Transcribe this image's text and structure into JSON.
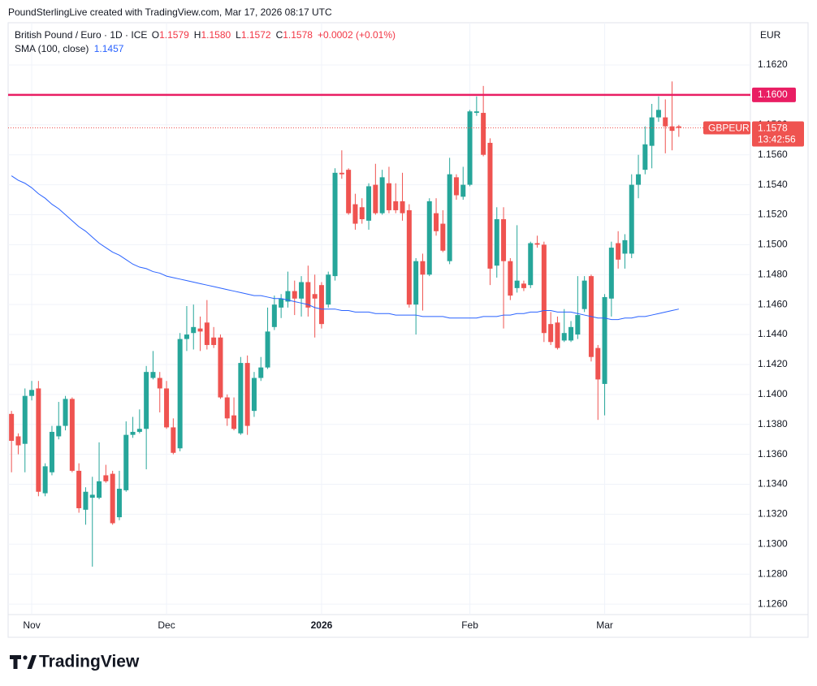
{
  "header": {
    "credit": "PoundSterlingLive created with TradingView.com, Mar 17, 2026 08:17 UTC",
    "brand": "TradingView"
  },
  "legend": {
    "symbol": "British Pound / Euro · 1D · ICE",
    "ohlc": [
      {
        "key": "O",
        "value": "1.1579"
      },
      {
        "key": "H",
        "value": "1.1580"
      },
      {
        "key": "L",
        "value": "1.1572"
      },
      {
        "key": "C",
        "value": "1.1578"
      }
    ],
    "change": "+0.0002 (+0.01%)"
  },
  "chart_data": {
    "type": "candlestick",
    "currency": "EUR",
    "categories": [
      null,
      null,
      null,
      "Nov",
      null,
      null,
      null,
      null,
      null,
      null,
      null,
      null,
      null,
      null,
      null,
      null,
      null,
      null,
      null,
      null,
      null,
      null,
      null,
      "Dec",
      null,
      null,
      null,
      null,
      null,
      null,
      null,
      null,
      null,
      null,
      null,
      null,
      null,
      null,
      null,
      null,
      null,
      null,
      null,
      null,
      null,
      null,
      "2026",
      null,
      null,
      null,
      null,
      null,
      null,
      null,
      null,
      null,
      null,
      null,
      null,
      null,
      null,
      null,
      null,
      null,
      null,
      null,
      null,
      null,
      "Feb",
      null,
      null,
      null,
      null,
      null,
      null,
      null,
      null,
      null,
      null,
      null,
      null,
      null,
      null,
      null,
      null,
      null,
      null,
      null,
      "Mar",
      null,
      null,
      null,
      null,
      null,
      null,
      null,
      null,
      null,
      null,
      null
    ],
    "open": [
      1.1387,
      1.1372,
      1.1367,
      1.1399,
      1.1404,
      1.1334,
      1.1348,
      1.1372,
      1.1379,
      1.1397,
      1.1349,
      1.1323,
      1.1331,
      1.1331,
      1.1346,
      1.1347,
      1.1318,
      1.1336,
      1.1373,
      1.1375,
      1.1377,
      1.1411,
      1.1411,
      1.1404,
      1.1378,
      1.1364,
      1.1437,
      1.1441,
      1.1444,
      1.1448,
      1.1438,
      1.1438,
      1.1398,
      1.1386,
      1.1374,
      1.1421,
      1.1389,
      1.1411,
      1.1418,
      1.1445,
      1.1458,
      1.1462,
      1.1469,
      1.1464,
      1.1475,
      1.1467,
      1.1473,
      1.146,
      1.1479,
      1.1548,
      1.155,
      1.1527,
      1.1525,
      1.1516,
      1.154,
      1.1521,
      1.1541,
      1.1529,
      1.1529,
      1.1523,
      1.146,
      1.1489,
      1.148,
      1.1521,
      1.1514,
      1.1489,
      1.1545,
      1.1532,
      1.154,
      1.1588,
      1.1588,
      1.1568,
      1.1486,
      1.1517,
      1.1489,
      1.1471,
      1.1474,
      1.1473,
      1.1501,
      1.15,
      1.1447,
      1.1448,
      1.1436,
      1.1436,
      1.144,
      1.1457,
      1.1479,
      1.1431,
      1.1407,
      1.1464,
      1.1501,
      1.1494,
      1.1494,
      1.154,
      1.155,
      1.1566,
      1.1585,
      1.1585,
      1.1579,
      1.1579
    ],
    "high": [
      1.1389,
      1.1374,
      1.1404,
      1.1409,
      1.1409,
      1.1354,
      1.1379,
      1.1395,
      1.1399,
      1.1398,
      1.1354,
      1.1338,
      1.1345,
      1.1368,
      1.1353,
      1.1349,
      1.1349,
      1.1382,
      1.1385,
      1.139,
      1.1419,
      1.1429,
      1.1415,
      1.1409,
      1.1384,
      1.1441,
      1.1459,
      1.146,
      1.1452,
      1.1463,
      1.1445,
      1.144,
      1.14,
      1.1398,
      1.1425,
      1.1426,
      1.1415,
      1.1425,
      1.1458,
      1.1466,
      1.1467,
      1.1482,
      1.1476,
      1.1479,
      1.1486,
      1.148,
      1.1475,
      1.1482,
      1.1551,
      1.1563,
      1.1551,
      1.1534,
      1.1531,
      1.1541,
      1.1554,
      1.155,
      1.1552,
      1.1541,
      1.1548,
      1.1527,
      1.1491,
      1.1494,
      1.1531,
      1.1531,
      1.1523,
      1.1558,
      1.1547,
      1.1552,
      1.159,
      1.1599,
      1.1606,
      1.1571,
      1.1525,
      1.1525,
      1.1491,
      1.1513,
      1.1476,
      1.1502,
      1.1506,
      1.1502,
      1.1455,
      1.1452,
      1.1457,
      1.1449,
      1.1479,
      1.1479,
      1.148,
      1.1433,
      1.1467,
      1.1502,
      1.1509,
      1.1507,
      1.1547,
      1.156,
      1.1579,
      1.1594,
      1.1599,
      1.1597,
      1.1609,
      1.158
    ],
    "low": [
      1.1348,
      1.136,
      1.1348,
      1.1396,
      1.1332,
      1.1332,
      1.1346,
      1.137,
      1.1376,
      1.1348,
      1.1321,
      1.1313,
      1.1285,
      1.133,
      1.1341,
      1.1313,
      1.1316,
      1.1335,
      1.1371,
      1.1374,
      1.135,
      1.141,
      1.1388,
      1.1377,
      1.136,
      1.1362,
      1.1429,
      1.143,
      1.1429,
      1.143,
      1.1431,
      1.1397,
      1.1379,
      1.1376,
      1.1373,
      1.1373,
      1.1385,
      1.1409,
      1.1417,
      1.1443,
      1.1451,
      1.1458,
      1.1453,
      1.1452,
      1.1452,
      1.1438,
      1.1444,
      1.1458,
      1.1476,
      1.1544,
      1.152,
      1.151,
      1.1514,
      1.151,
      1.152,
      1.152,
      1.1521,
      1.1521,
      1.1516,
      1.1458,
      1.144,
      1.1456,
      1.1479,
      1.1506,
      1.1495,
      1.1487,
      1.153,
      1.153,
      1.1539,
      1.1586,
      1.1559,
      1.1473,
      1.1478,
      1.1444,
      1.1463,
      1.1468,
      1.1469,
      1.1471,
      1.1498,
      1.1435,
      1.1433,
      1.143,
      1.1435,
      1.1435,
      1.1437,
      1.1455,
      1.1422,
      1.1383,
      1.1386,
      1.1452,
      1.1484,
      1.1484,
      1.1491,
      1.1531,
      1.1547,
      1.1551,
      1.1582,
      1.1561,
      1.1563,
      1.1572
    ],
    "close": [
      1.1369,
      1.1366,
      1.1399,
      1.1403,
      1.1335,
      1.1352,
      1.1375,
      1.1379,
      1.1397,
      1.1349,
      1.1324,
      1.1335,
      1.1333,
      1.1342,
      1.1342,
      1.1314,
      1.1337,
      1.1373,
      1.1375,
      1.1377,
      1.1415,
      1.1415,
      1.1404,
      1.1378,
      1.1361,
      1.1437,
      1.144,
      1.1445,
      1.1442,
      1.1433,
      1.1433,
      1.1398,
      1.1384,
      1.1377,
      1.1421,
      1.1379,
      1.1411,
      1.1418,
      1.1442,
      1.146,
      1.1464,
      1.1469,
      1.1464,
      1.1475,
      1.1458,
      1.1464,
      1.1447,
      1.148,
      1.1548,
      1.1547,
      1.1521,
      1.1514,
      1.1517,
      1.1539,
      1.1521,
      1.1545,
      1.1523,
      1.1523,
      1.1521,
      1.146,
      1.1489,
      1.148,
      1.1529,
      1.1509,
      1.1496,
      1.1547,
      1.1533,
      1.154,
      1.1589,
      1.1589,
      1.156,
      1.1484,
      1.1517,
      1.1489,
      1.1466,
      1.1476,
      1.1471,
      1.1501,
      1.15,
      1.1441,
      1.1435,
      1.1431,
      1.1441,
      1.1445,
      1.1453,
      1.1476,
      1.1425,
      1.141,
      1.1465,
      1.1498,
      1.149,
      1.1503,
      1.154,
      1.1547,
      1.1567,
      1.1585,
      1.159,
      1.1579,
      1.1576,
      1.1578
    ],
    "up_color": "#26a69a",
    "down_color": "#ef5350",
    "sma": {
      "name": "SMA (100, close)",
      "color": "#2962ff",
      "value_label": "1.1457",
      "values": [
        1.1546,
        1.1543,
        1.1541,
        1.1538,
        1.1534,
        1.1531,
        1.1527,
        1.1524,
        1.152,
        1.1516,
        1.1512,
        1.1509,
        1.1505,
        1.1501,
        1.1498,
        1.1495,
        1.1493,
        1.149,
        1.1487,
        1.1485,
        1.1484,
        1.1482,
        1.1481,
        1.1479,
        1.1478,
        1.1477,
        1.1476,
        1.1475,
        1.1474,
        1.1473,
        1.1472,
        1.1471,
        1.147,
        1.1469,
        1.1468,
        1.1467,
        1.1466,
        1.1466,
        1.1465,
        1.1464,
        1.1464,
        1.1463,
        1.1462,
        1.1461,
        1.146,
        1.1458,
        1.1457,
        1.1457,
        1.1457,
        1.1456,
        1.1456,
        1.1455,
        1.1455,
        1.1455,
        1.1454,
        1.1454,
        1.1454,
        1.1453,
        1.1453,
        1.1453,
        1.1453,
        1.1452,
        1.1452,
        1.1452,
        1.1452,
        1.1451,
        1.1451,
        1.1451,
        1.1451,
        1.1451,
        1.1452,
        1.1452,
        1.1452,
        1.1453,
        1.1453,
        1.1454,
        1.1454,
        1.1455,
        1.1455,
        1.1456,
        1.1456,
        1.1455,
        1.1455,
        1.1455,
        1.1454,
        1.1453,
        1.1452,
        1.1451,
        1.1451,
        1.145,
        1.145,
        1.1451,
        1.1451,
        1.1452,
        1.1452,
        1.1453,
        1.1454,
        1.1455,
        1.1456,
        1.1457
      ]
    },
    "hlines": [
      {
        "value": 1.16,
        "label": "1.1600",
        "color": "#e91e63"
      }
    ],
    "last_price": {
      "symbol": "GBPEUR",
      "value": 1.1578,
      "countdown": "13:42:56"
    },
    "ylim": [
      1.1253,
      1.16482
    ],
    "yticks": [
      {
        "value": 1.126,
        "label": "1.1260"
      },
      {
        "value": 1.128,
        "label": "1.1280"
      },
      {
        "value": 1.13,
        "label": "1.1300"
      },
      {
        "value": 1.132,
        "label": "1.1320"
      },
      {
        "value": 1.134,
        "label": "1.1340"
      },
      {
        "value": 1.136,
        "label": "1.1360"
      },
      {
        "value": 1.138,
        "label": "1.1380"
      },
      {
        "value": 1.14,
        "label": "1.1400"
      },
      {
        "value": 1.142,
        "label": "1.1420"
      },
      {
        "value": 1.144,
        "label": "1.1440"
      },
      {
        "value": 1.146,
        "label": "1.1460"
      },
      {
        "value": 1.148,
        "label": "1.1480"
      },
      {
        "value": 1.15,
        "label": "1.1500"
      },
      {
        "value": 1.152,
        "label": "1.1520"
      },
      {
        "value": 1.154,
        "label": "1.1540"
      },
      {
        "value": 1.156,
        "label": "1.1560"
      },
      {
        "value": 1.158,
        "label": "1.1580"
      },
      {
        "value": 1.16,
        "label": "1.1600"
      },
      {
        "value": 1.162,
        "label": "1.1620"
      }
    ],
    "grid": true
  }
}
